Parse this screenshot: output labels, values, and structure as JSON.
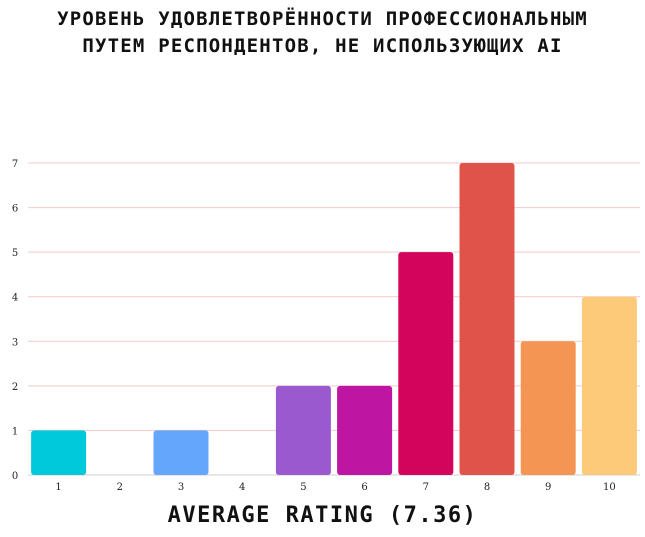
{
  "title_lines": [
    "УРОВЕНЬ УДОВЛЕТВОРЁННОСТИ ПРОФЕССИОНАЛЬНЫМ",
    "ПУТЕМ РЕСПОНДЕНТОВ, НЕ ИСПОЛЬЗУЮЩИХ AI"
  ],
  "footer": "AVERAGE RATING (7.36)",
  "chart_data": {
    "type": "bar",
    "title": "УРОВЕНЬ УДОВЛЕТВОРЁННОСТИ ПРОФЕССИОНАЛЬНЫМ ПУТЕМ РЕСПОНДЕНТОВ, НЕ ИСПОЛЬЗУЮЩИХ AI",
    "xlabel": "AVERAGE RATING (7.36)",
    "ylabel": "",
    "categories": [
      "1",
      "2",
      "3",
      "4",
      "5",
      "6",
      "7",
      "8",
      "9",
      "10"
    ],
    "values": [
      1,
      0,
      1,
      0,
      2,
      2,
      5,
      7,
      3,
      4
    ],
    "colors": [
      "#00c9dc",
      "#4fa3ff",
      "#63a6fb",
      "#8d8cf0",
      "#9b59d0",
      "#be15a3",
      "#d2045c",
      "#e0534a",
      "#f49554",
      "#fdca7a"
    ],
    "yticks": [
      0,
      1,
      2,
      3,
      4,
      5,
      6,
      7
    ],
    "ylim": [
      0,
      7
    ],
    "grid": true,
    "gridline_color": "#f4c9c9"
  }
}
